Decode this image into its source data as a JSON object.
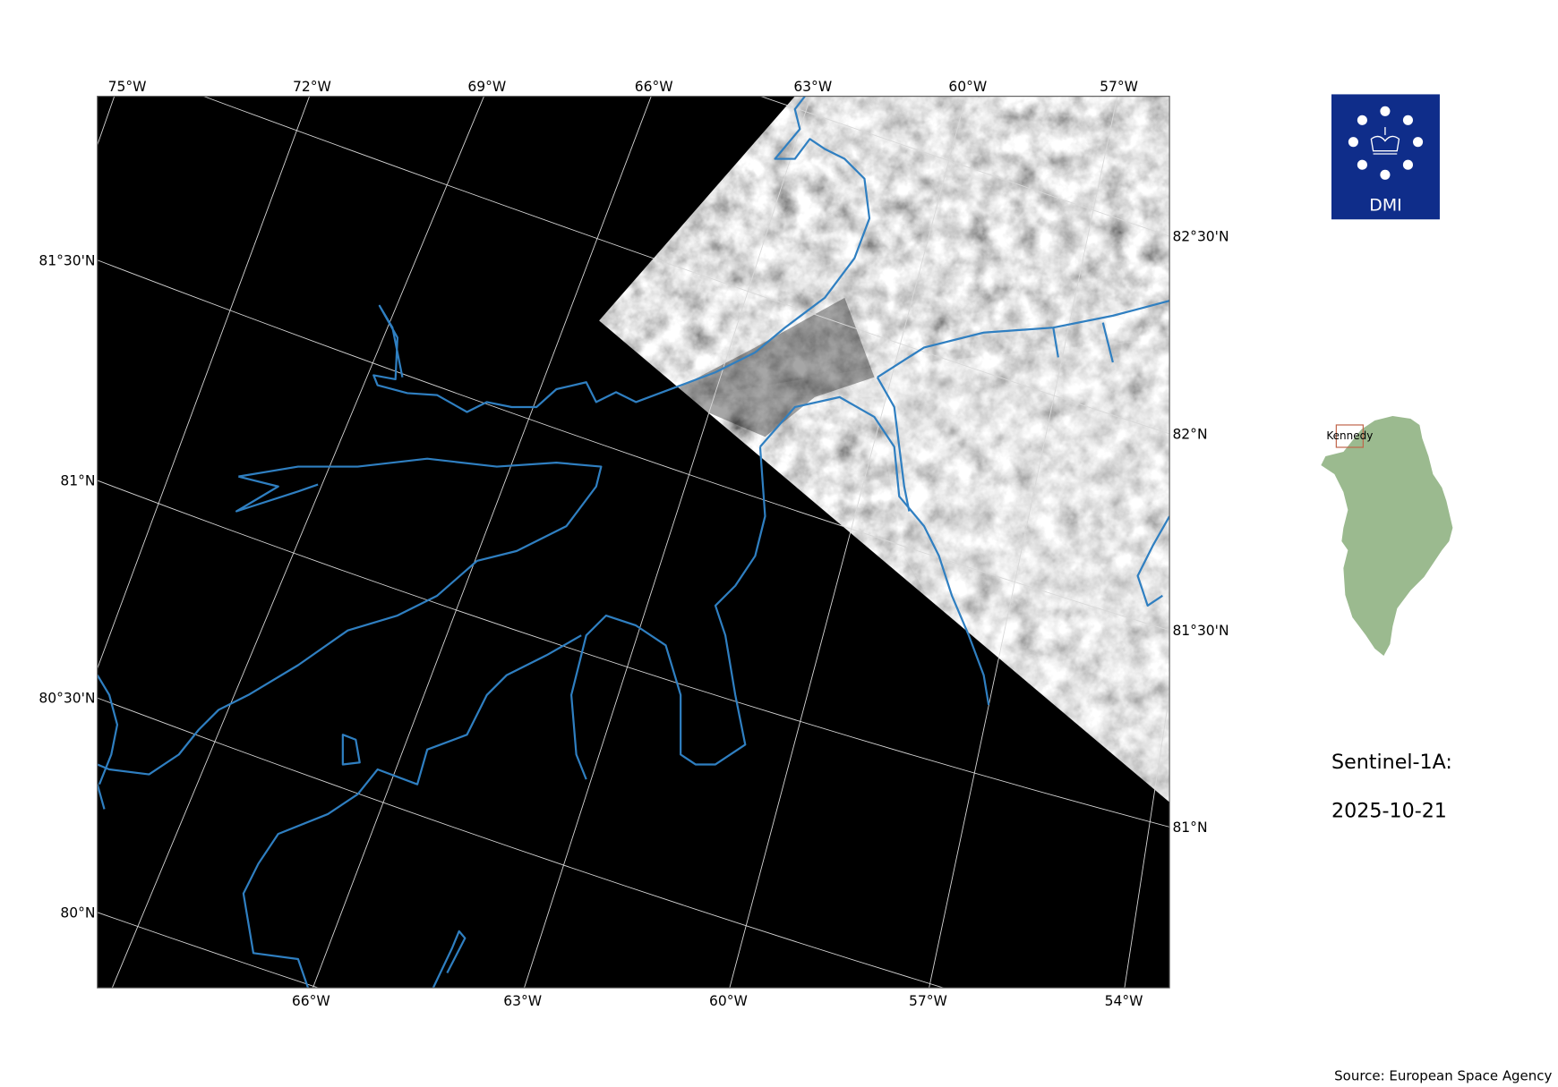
{
  "map": {
    "top_lon_labels": [
      "75°W",
      "72°W",
      "69°W",
      "66°W",
      "63°W",
      "60°W",
      "57°W"
    ],
    "bottom_lon_labels": [
      "66°W",
      "63°W",
      "60°W",
      "57°W",
      "54°W"
    ],
    "left_lat_labels": [
      "81°30'N",
      "81°N",
      "80°30'N",
      "80°N"
    ],
    "right_lat_labels": [
      "82°30'N",
      "82°N",
      "81°30'N",
      "81°N"
    ],
    "background_color": "#000000",
    "coastline_color": "#2f7fc1"
  },
  "logo": {
    "text": "DMI",
    "color": "#0f2d8a"
  },
  "inset": {
    "region_label": "Kennedy",
    "land_color": "#9bba8f",
    "box_color": "#c0654a"
  },
  "info": {
    "satellite": "Sentinel-1A:",
    "date": "2025-10-21"
  },
  "source": "Source: European Space Agency"
}
